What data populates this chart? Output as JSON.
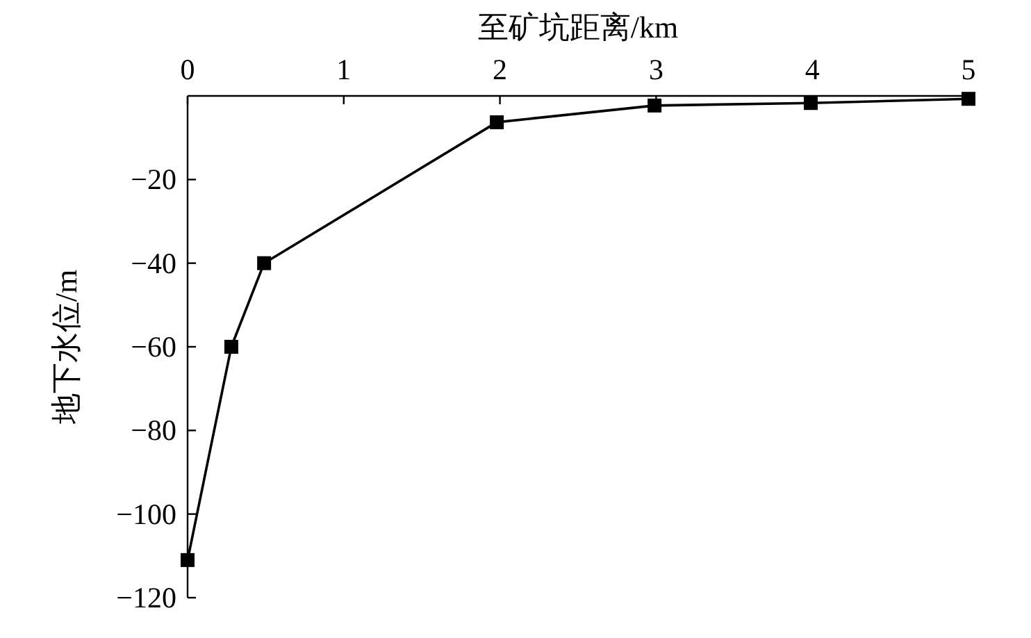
{
  "chart_data": {
    "type": "line",
    "xlabel": "至矿坑距离/km",
    "ylabel": "地下水位/m",
    "x": [
      0.0,
      0.28,
      0.49,
      1.98,
      2.99,
      3.99,
      5.0
    ],
    "series": [
      {
        "color": "#000000",
        "values": [
          -111,
          -60,
          -40,
          -6.3,
          -2.3,
          -1.7,
          -0.7
        ]
      }
    ],
    "xlim": [
      0,
      5
    ],
    "xticks": [
      0,
      1,
      2,
      3,
      4,
      5
    ],
    "ylim": [
      -120,
      0
    ],
    "yticks": [
      -120,
      -100,
      -80,
      -60,
      -40,
      -20
    ],
    "marker": "square",
    "line_style": "solid",
    "grid": false
  }
}
